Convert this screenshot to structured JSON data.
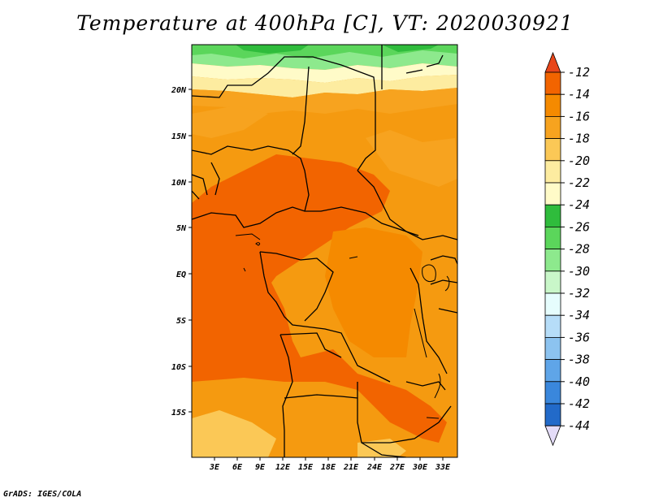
{
  "title": "Temperature at 400hPa [C], VT: 2020030921",
  "credit": "GrADS: IGES/COLA",
  "map": {
    "lat_labels": [
      "20N",
      "15N",
      "10N",
      "5N",
      "EQ",
      "5S",
      "10S",
      "15S"
    ],
    "lon_labels": [
      "3E",
      "6E",
      "9E",
      "12E",
      "15E",
      "18E",
      "21E",
      "24E",
      "27E",
      "30E",
      "33E"
    ]
  },
  "colorbar": {
    "levels": [
      "-12",
      "-14",
      "-16",
      "-18",
      "-20",
      "-22",
      "-24",
      "-26",
      "-28",
      "-30",
      "-32",
      "-34",
      "-36",
      "-38",
      "-40",
      "-42",
      "-44"
    ],
    "colors": [
      "#e8461a",
      "#f26400",
      "#f58a00",
      "#f7a31f",
      "#fbc856",
      "#fdeca0",
      "#fffbc8",
      "#2fbc3c",
      "#5bd65b",
      "#8de98d",
      "#c9f7c9",
      "#e6fdfd",
      "#b6ddf8",
      "#8cc3f0",
      "#5fa5e8",
      "#3a87dc",
      "#226ac9",
      "#1450b0",
      "#0a1f74"
    ],
    "top_color": "#e8461a",
    "bottom_color": "#e4dcf8"
  }
}
